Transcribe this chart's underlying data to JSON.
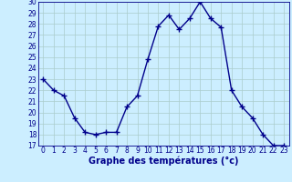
{
  "hours": [
    0,
    1,
    2,
    3,
    4,
    5,
    6,
    7,
    8,
    9,
    10,
    11,
    12,
    13,
    14,
    15,
    16,
    17,
    18,
    19,
    20,
    21,
    22,
    23
  ],
  "temperatures": [
    23,
    22,
    21.5,
    19.5,
    18.2,
    18.0,
    18.2,
    18.2,
    20.5,
    21.5,
    24.8,
    27.8,
    28.8,
    27.5,
    28.5,
    30,
    28.5,
    27.7,
    22,
    20.5,
    19.5,
    18.0,
    17.0,
    17.0
  ],
  "line_color": "#00008B",
  "marker": "+",
  "marker_size": 4,
  "bg_color": "#cceeff",
  "grid_color": "#aacccc",
  "xlabel": "Graphe des températures (°c)",
  "ylim_min": 17,
  "ylim_max": 30,
  "yticks": [
    17,
    18,
    19,
    20,
    21,
    22,
    23,
    24,
    25,
    26,
    27,
    28,
    29,
    30
  ],
  "xticks": [
    0,
    1,
    2,
    3,
    4,
    5,
    6,
    7,
    8,
    9,
    10,
    11,
    12,
    13,
    14,
    15,
    16,
    17,
    18,
    19,
    20,
    21,
    22,
    23
  ],
  "xtick_labels": [
    "0",
    "1",
    "2",
    "3",
    "4",
    "5",
    "6",
    "7",
    "8",
    "9",
    "10",
    "11",
    "12",
    "13",
    "14",
    "15",
    "16",
    "17",
    "18",
    "19",
    "20",
    "21",
    "22",
    "23"
  ],
  "tick_fontsize": 5.5,
  "xlabel_fontsize": 7,
  "label_color": "#00008B",
  "tick_color": "#00008B",
  "linewidth": 1.0
}
